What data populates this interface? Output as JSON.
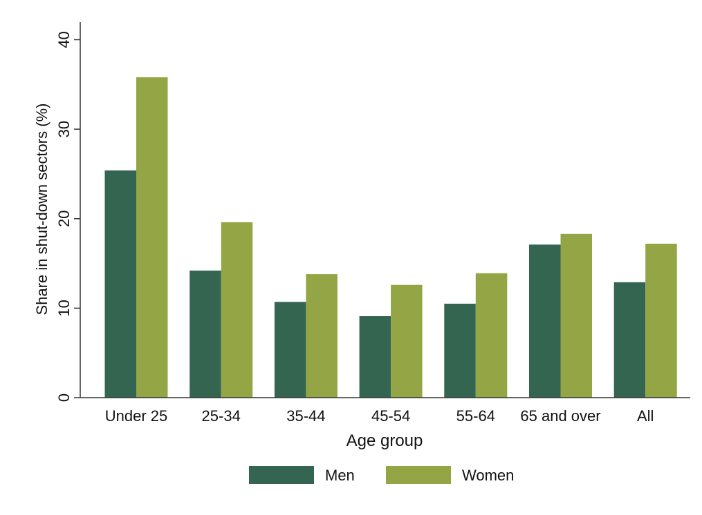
{
  "chart_data": {
    "type": "bar",
    "title": "",
    "xlabel": "Age group",
    "ylabel": "Share in shut-down sectors (%)",
    "ylim": [
      0,
      40
    ],
    "yticks": [
      0,
      10,
      20,
      30,
      40
    ],
    "grid": false,
    "legend_position": "bottom",
    "categories": [
      "Under 25",
      "25-34",
      "35-44",
      "45-54",
      "55-64",
      "65 and over",
      "All"
    ],
    "series": [
      {
        "name": "Men",
        "color": "#336551",
        "values": [
          25.4,
          14.2,
          10.7,
          9.1,
          10.5,
          17.1,
          12.9
        ]
      },
      {
        "name": "Women",
        "color": "#93A545",
        "values": [
          35.8,
          19.6,
          13.8,
          12.6,
          13.9,
          18.3,
          17.2
        ]
      }
    ]
  }
}
